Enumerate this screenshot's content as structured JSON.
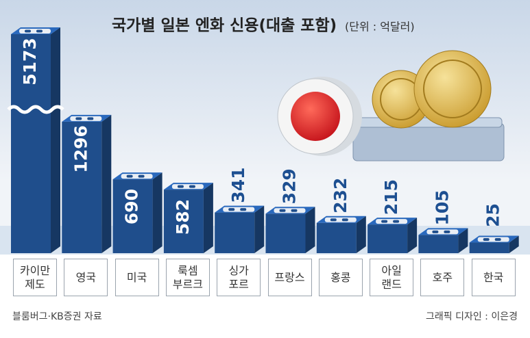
{
  "chart_data": {
    "type": "bar",
    "title": "국가별 일본 엔화 신용(대출 포함)",
    "subtitle": "(단위 : 억달러)",
    "categories": [
      "카이만\n제도",
      "영국",
      "미국",
      "룩셈\n부르크",
      "싱가\n포르",
      "프랑스",
      "홍콩",
      "아일\n랜드",
      "호주",
      "한국"
    ],
    "values": [
      5173,
      1296,
      690,
      582,
      341,
      329,
      232,
      215,
      105,
      25
    ],
    "color": "#1f4e8c",
    "axis_break": true,
    "source": "블룸버그·KB증권 자료",
    "credit": "그래픽 디자인 : 이은경"
  }
}
